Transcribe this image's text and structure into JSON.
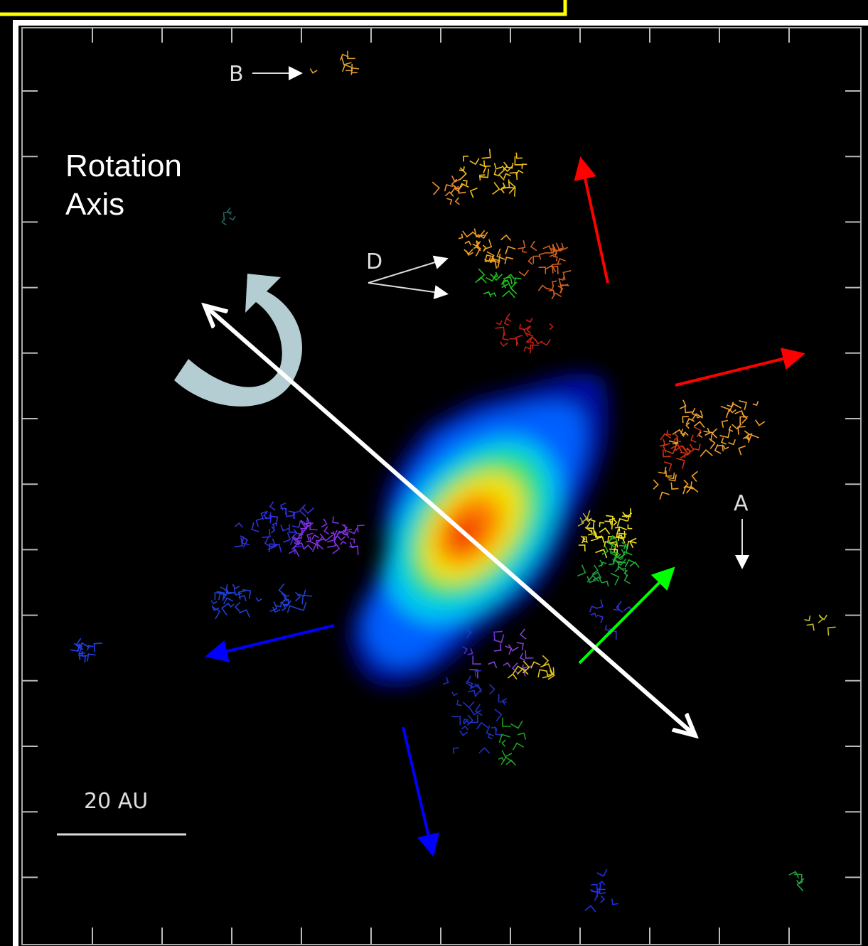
{
  "annotations": {
    "rotation_axis": "Rotation Axis",
    "b": "B",
    "d": "D",
    "a": "A",
    "scale_bar": "20 AU"
  }
}
